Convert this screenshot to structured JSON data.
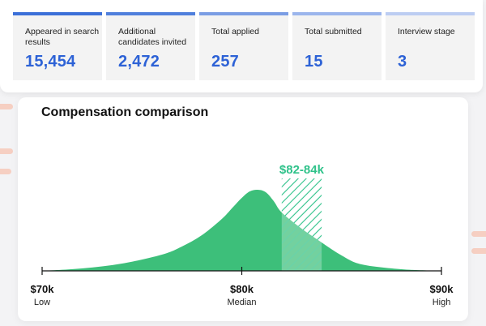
{
  "colors": {
    "accent_blue": "#2d62d6",
    "card_border_dark": "#3b6fd8",
    "card_border_light": "#b6c9f2",
    "curve_green": "#3dbf7a",
    "range_green": "#2fc28a",
    "deco_peach": "#f6cfc2"
  },
  "stats": [
    {
      "label": "Appeared in search results",
      "value": "15,454"
    },
    {
      "label": "Additional candidates invited",
      "value": "2,472"
    },
    {
      "label": "Total applied",
      "value": "257"
    },
    {
      "label": "Total submitted",
      "value": "15"
    },
    {
      "label": "Interview stage",
      "value": "3"
    }
  ],
  "chart_data": {
    "type": "area",
    "title": "Compensation comparison",
    "x": [
      70,
      72,
      74,
      76,
      77,
      78,
      79,
      79.5,
      80,
      80.4,
      80.8,
      81.2,
      81.6,
      82,
      83,
      84,
      85,
      86,
      88,
      90
    ],
    "y": [
      0.0,
      0.03,
      0.09,
      0.2,
      0.3,
      0.44,
      0.64,
      0.77,
      0.9,
      0.98,
      1.0,
      0.97,
      0.86,
      0.72,
      0.52,
      0.35,
      0.19,
      0.08,
      0.02,
      0.0
    ],
    "xlim": [
      70,
      90
    ],
    "ticks": [
      {
        "value": 70,
        "label": "$70k",
        "sublabel": "Low"
      },
      {
        "value": 80,
        "label": "$80k",
        "sublabel": "Median"
      },
      {
        "value": 90,
        "label": "$90k",
        "sublabel": "High"
      }
    ],
    "highlight_range": {
      "from": 82,
      "to": 84,
      "label": "$82-84k"
    }
  }
}
